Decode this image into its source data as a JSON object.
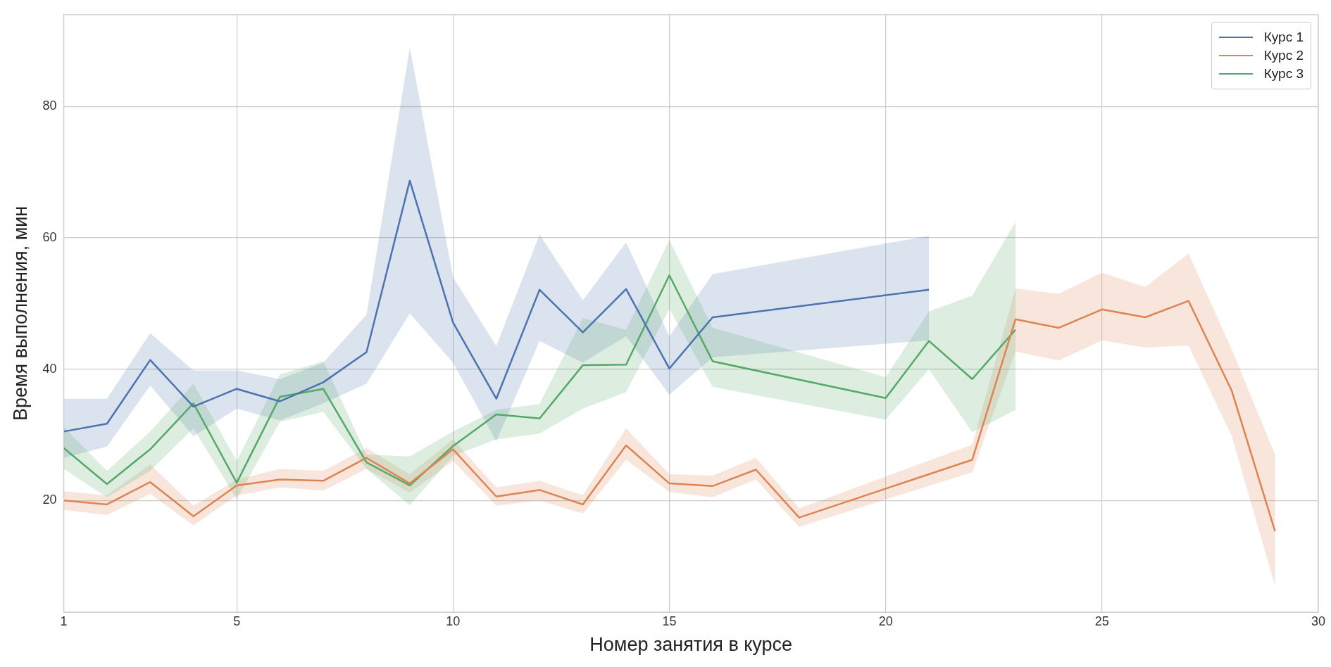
{
  "chart_data": {
    "type": "line",
    "xlabel": "Номер занятия в курсе",
    "ylabel": "Время выполнения, мин",
    "xlim": [
      1,
      30
    ],
    "xticks": [
      1,
      5,
      10,
      15,
      20,
      25,
      30
    ],
    "ylim": [
      3,
      94
    ],
    "yticks": [
      20,
      40,
      60,
      80
    ],
    "grid": true,
    "legend": "top right",
    "marker": "none",
    "line_style": "solid",
    "series": [
      {
        "name": "Курс 1",
        "color": "#4c72b0",
        "x": [
          1,
          2,
          3,
          4,
          5,
          6,
          7,
          8,
          9,
          10,
          11,
          12,
          13,
          14,
          15,
          16,
          21
        ],
        "values": [
          30.5,
          31.7,
          41.4,
          34.3,
          37,
          35.1,
          38,
          42.6,
          68.7,
          47.1,
          35.5,
          52.1,
          45.6,
          52.2,
          40.1,
          47.9,
          52.1
        ],
        "lower": [
          26.5,
          28.2,
          37.5,
          29.8,
          34,
          32.2,
          34.8,
          37.8,
          48.5,
          41,
          29,
          44.3,
          41,
          45,
          36.1,
          41.8,
          44.4
        ],
        "upper": [
          35.5,
          35.5,
          45.5,
          39.8,
          39.8,
          38.5,
          41,
          48.3,
          89,
          54,
          43.5,
          60.5,
          50.5,
          59.3,
          45,
          54.5,
          60.3
        ]
      },
      {
        "name": "Курс 2",
        "color": "#dd8452",
        "x": [
          1,
          2,
          3,
          4,
          5,
          6,
          7,
          8,
          9,
          10,
          11,
          12,
          13,
          14,
          15,
          16,
          17,
          18,
          22,
          23,
          24,
          25,
          26,
          27,
          28,
          29
        ],
        "values": [
          20,
          19.4,
          22.8,
          17.6,
          22.3,
          23.2,
          23,
          26.5,
          22.6,
          27.8,
          20.6,
          21.6,
          19.4,
          28.4,
          22.6,
          22.2,
          24.7,
          17.4,
          26.2,
          47.6,
          46.3,
          49.1,
          47.9,
          50.4,
          36.7,
          15.3
        ],
        "lower": [
          18.6,
          17.8,
          21,
          16.2,
          20.8,
          22,
          21.5,
          24.8,
          21.2,
          26,
          19.2,
          20,
          18,
          26.2,
          21.3,
          20.5,
          23.2,
          16,
          24.3,
          42.7,
          41.3,
          44.4,
          43.3,
          43.6,
          29.8,
          7
        ],
        "upper": [
          21.4,
          20.8,
          25.5,
          19.2,
          23.2,
          24.8,
          24.5,
          28,
          24,
          29.3,
          22,
          23,
          20.8,
          31,
          24,
          23.8,
          26.5,
          18.8,
          28.5,
          52.3,
          51.5,
          54.7,
          52.5,
          57.6,
          43,
          27
        ]
      },
      {
        "name": "Курс 3",
        "color": "#55a868",
        "x": [
          1,
          2,
          3,
          4,
          5,
          6,
          7,
          8,
          9,
          10,
          11,
          12,
          13,
          14,
          15,
          16,
          20,
          21,
          22,
          23
        ],
        "values": [
          28,
          22.5,
          27.8,
          34.8,
          22.7,
          35.8,
          37,
          25.8,
          22.3,
          28.3,
          33.1,
          32.5,
          40.6,
          40.7,
          54.3,
          41.2,
          35.6,
          44.3,
          38.5,
          46
        ],
        "lower": [
          24.8,
          20.5,
          24.5,
          31,
          20.2,
          32,
          33.5,
          24.8,
          19.3,
          26.8,
          29.3,
          30.2,
          34,
          36.5,
          49.2,
          37.3,
          32.3,
          40,
          30.4,
          33.8
        ],
        "upper": [
          31.2,
          24.5,
          30.5,
          37.8,
          26,
          39.2,
          41.2,
          27,
          26.7,
          30.5,
          33.8,
          34.7,
          47.8,
          46,
          59.7,
          46.3,
          38.8,
          48.8,
          51.2,
          62.4
        ]
      }
    ]
  }
}
